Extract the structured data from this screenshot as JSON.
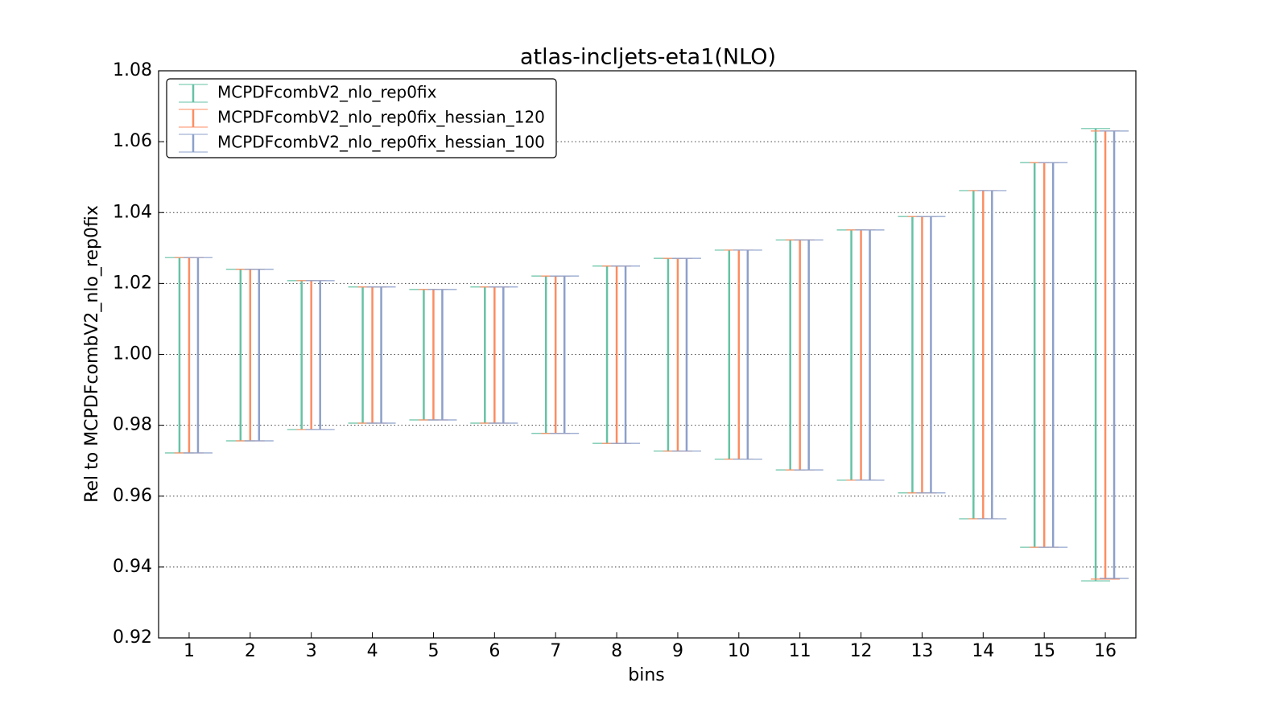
{
  "chart_data": {
    "type": "errorbar",
    "title": "atlas-incljets-eta1(NLO)",
    "x_label": "bins",
    "y_label": "Rel to MCPDFcombV2_nlo_rep0fix",
    "x": [
      1,
      2,
      3,
      4,
      5,
      6,
      7,
      8,
      9,
      10,
      11,
      12,
      13,
      14,
      15,
      16
    ],
    "xlim": [
      0.5,
      16.5
    ],
    "xticks": [
      1,
      2,
      3,
      4,
      5,
      6,
      7,
      8,
      9,
      10,
      11,
      12,
      13,
      14,
      15,
      16
    ],
    "ylim": [
      0.92,
      1.08
    ],
    "yticks": [
      {
        "value": 0.92,
        "label": "0.92"
      },
      {
        "value": 0.94,
        "label": "0.94"
      },
      {
        "value": 0.96,
        "label": "0.96"
      },
      {
        "value": 0.98,
        "label": "0.98"
      },
      {
        "value": 1.0,
        "label": "1.00"
      },
      {
        "value": 1.02,
        "label": "1.02"
      },
      {
        "value": 1.04,
        "label": "1.04"
      },
      {
        "value": 1.06,
        "label": "1.06"
      },
      {
        "value": 1.08,
        "label": "1.08"
      }
    ],
    "grid": true,
    "legend": "upper left",
    "series": [
      {
        "name": "MCPDFcombV2_nlo_rep0fix",
        "color": "#66c2a5",
        "high": [
          1.0273,
          1.024,
          1.0208,
          1.019,
          1.0183,
          1.019,
          1.0221,
          1.0249,
          1.0271,
          1.0294,
          1.0323,
          1.0351,
          1.0389,
          1.0462,
          1.0541,
          1.0637
        ],
        "low": [
          0.9722,
          0.9756,
          0.9788,
          0.9806,
          0.9815,
          0.9806,
          0.9777,
          0.9749,
          0.9727,
          0.9704,
          0.9674,
          0.9645,
          0.9609,
          0.9536,
          0.9456,
          0.9361
        ]
      },
      {
        "name": "MCPDFcombV2_nlo_rep0fix_hessian_120",
        "color": "#fc8d62",
        "high": [
          1.0273,
          1.024,
          1.0208,
          1.019,
          1.0183,
          1.019,
          1.0221,
          1.0249,
          1.0271,
          1.0294,
          1.0323,
          1.0351,
          1.0389,
          1.0462,
          1.0541,
          1.063
        ],
        "low": [
          0.9722,
          0.9756,
          0.9788,
          0.9806,
          0.9815,
          0.9806,
          0.9777,
          0.9749,
          0.9727,
          0.9704,
          0.9674,
          0.9645,
          0.9609,
          0.9536,
          0.9456,
          0.9366
        ]
      },
      {
        "name": "MCPDFcombV2_nlo_rep0fix_hessian_100",
        "color": "#8da0cb",
        "high": [
          1.0273,
          1.024,
          1.0208,
          1.019,
          1.0183,
          1.019,
          1.0221,
          1.0249,
          1.0271,
          1.0294,
          1.0323,
          1.0351,
          1.0389,
          1.0462,
          1.0541,
          1.063
        ],
        "low": [
          0.9722,
          0.9756,
          0.9788,
          0.9806,
          0.9815,
          0.9806,
          0.9777,
          0.9749,
          0.9727,
          0.9704,
          0.9674,
          0.9645,
          0.9609,
          0.9536,
          0.9456,
          0.9368
        ]
      }
    ]
  }
}
